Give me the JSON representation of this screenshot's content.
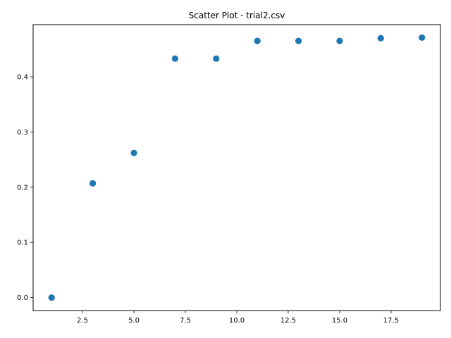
{
  "chart_data": {
    "type": "scatter",
    "title": "Scatter Plot - trial2.csv",
    "xlabel": "",
    "ylabel": "",
    "x": [
      1,
      3,
      5,
      7,
      9,
      11,
      13,
      15,
      17,
      19
    ],
    "y": [
      0.0,
      0.207,
      0.262,
      0.433,
      0.433,
      0.465,
      0.465,
      0.465,
      0.47,
      0.471
    ],
    "xlim": [
      0.1,
      19.9
    ],
    "ylim": [
      -0.0235,
      0.4945
    ],
    "xticks": [
      2.5,
      5.0,
      7.5,
      10.0,
      12.5,
      15.0,
      17.5
    ],
    "xtick_labels": [
      "2.5",
      "5.0",
      "7.5",
      "10.0",
      "12.5",
      "15.0",
      "17.5"
    ],
    "yticks": [
      0.0,
      0.1,
      0.2,
      0.3,
      0.4
    ],
    "ytick_labels": [
      "0.0",
      "0.1",
      "0.2",
      "0.3",
      "0.4"
    ],
    "grid": false,
    "legend": "none",
    "point_color": "#1f77b4"
  }
}
